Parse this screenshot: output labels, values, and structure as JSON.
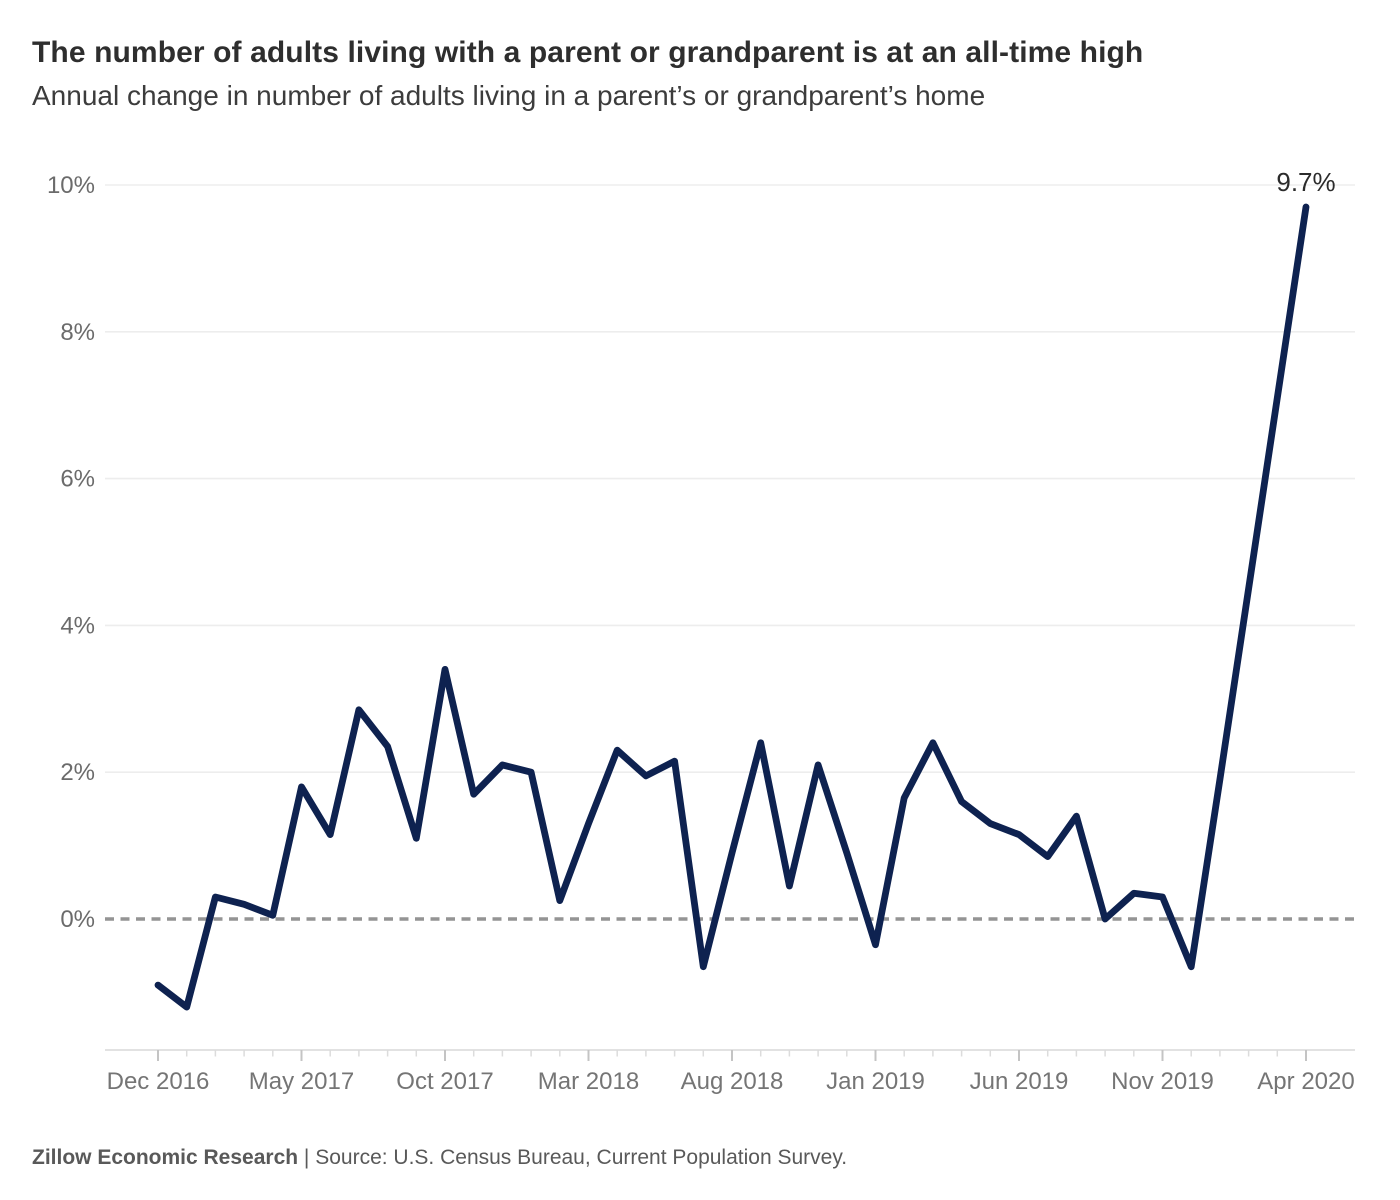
{
  "header": {
    "title": "The number of adults living with a parent or grandparent is at an all-time high",
    "subtitle": "Annual change in number of adults living in a parent’s or grandparent’s home"
  },
  "footer": {
    "brand": "Zillow Economic Research",
    "rest": " | Source: U.S. Census Bureau, Current Population Survey."
  },
  "colors": {
    "line": "#0e2250",
    "grid": "#ededed",
    "zero_line": "#949494",
    "axis_line": "#d8d8d8",
    "minor_tick": "#dcdcdc",
    "major_tick": "#c4c4c4",
    "y_tick_label": "#6b6b6b",
    "x_tick_label": "#757575",
    "annotation": "#2b2b2b",
    "background": "#ffffff"
  },
  "chart_data": {
    "type": "line",
    "title": "The number of adults living with a parent or grandparent is at an all-time high",
    "subtitle": "Annual change in number of adults living in a parent’s or grandparent’s home",
    "xlabel": "",
    "ylabel": "",
    "x": [
      "Dec 2016",
      "Jan 2017",
      "Feb 2017",
      "Mar 2017",
      "Apr 2017",
      "May 2017",
      "Jun 2017",
      "Jul 2017",
      "Aug 2017",
      "Sep 2017",
      "Oct 2017",
      "Nov 2017",
      "Dec 2017",
      "Jan 2018",
      "Feb 2018",
      "Mar 2018",
      "Apr 2018",
      "May 2018",
      "Jun 2018",
      "Jul 2018",
      "Aug 2018",
      "Sep 2018",
      "Oct 2018",
      "Nov 2018",
      "Dec 2018",
      "Jan 2019",
      "Feb 2019",
      "Mar 2019",
      "Apr 2019",
      "May 2019",
      "Jun 2019",
      "Jul 2019",
      "Aug 2019",
      "Sep 2019",
      "Oct 2019",
      "Nov 2019",
      "Dec 2019",
      "Jan 2020",
      "Feb 2020",
      "Mar 2020",
      "Apr 2020"
    ],
    "values": [
      -0.9,
      -1.2,
      0.3,
      0.2,
      0.05,
      1.8,
      1.15,
      2.85,
      2.35,
      1.1,
      3.4,
      1.7,
      2.1,
      2.0,
      0.25,
      1.3,
      2.3,
      1.95,
      2.15,
      -0.65,
      0.9,
      2.4,
      0.45,
      2.1,
      0.9,
      -0.35,
      1.65,
      2.4,
      1.6,
      1.3,
      1.15,
      0.85,
      1.4,
      0.0,
      0.35,
      0.3,
      -0.65,
      1.9,
      4.5,
      7.1,
      9.7
    ],
    "x_tick_labels": [
      "Dec 2016",
      "May 2017",
      "Oct 2017",
      "Mar 2018",
      "Aug 2018",
      "Jan 2019",
      "Jun 2019",
      "Nov 2019",
      "Apr 2020"
    ],
    "x_tick_every": 5,
    "y_tick_values": [
      0,
      2,
      4,
      6,
      8,
      10
    ],
    "y_tick_labels": [
      "0%",
      "2%",
      "4%",
      "6%",
      "8%",
      "10%"
    ],
    "ylim": [
      -1.78,
      10.4
    ],
    "grid": "horizontal",
    "zero_line": "dashed",
    "legend": "none",
    "annotation": {
      "x": "Apr 2020",
      "y": 9.7,
      "label": "9.7%"
    }
  }
}
